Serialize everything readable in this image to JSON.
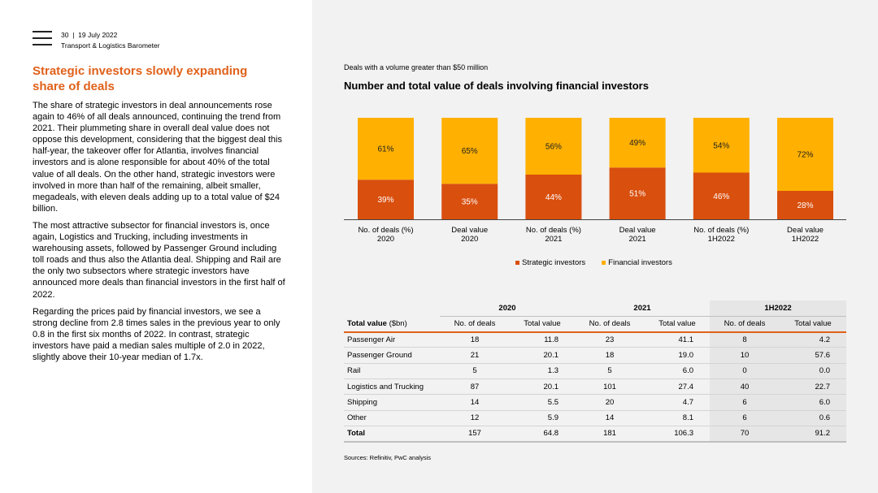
{
  "header": {
    "page_number": "30",
    "separator": "|",
    "date": "19 July 2022",
    "report_name": "Transport & Logistics Barometer"
  },
  "section": {
    "title": "Strategic investors slowly expanding share of deals",
    "paragraphs": [
      "The share of strategic investors in deal announcements rose again to 46% of all deals announced, continuing the trend from 2021. Their plummeting share in overall deal value does not oppose this development, considering that the biggest deal this half-year, the takeover offer for Atlantia, involves financial investors and is alone responsible for about 40% of the total value of all deals. On the other hand, strategic investors were involved in more than half of the remaining, albeit smaller, megadeals, with eleven deals adding up to a total value of $24 billion.",
      "The most attractive subsector for financial investors is, once again, Logistics and Trucking, including investments in warehousing assets, followed by Passenger Ground including toll roads and thus also the Atlantia deal. Shipping and Rail are the only two subsectors where strategic investors have announced more deals than financial investors in the first half of 2022.",
      "Regarding the prices paid by financial investors, we see a strong decline from 2.8 times sales in the previous year to only 0.8 in the first six months of 2022. In contrast, strategic investors have paid a median sales multiple of 2.0 in 2022, slightly above their 10-year median of 1.7x."
    ]
  },
  "chart_data": {
    "type": "bar",
    "stacked": true,
    "subtitle": "Deals with a volume greater than $50 million",
    "title": "Number and total value of deals involving financial investors",
    "categories": [
      [
        "No. of deals (%)",
        "2020"
      ],
      [
        "Deal value",
        "2020"
      ],
      [
        "No. of deals (%)",
        "2021"
      ],
      [
        "Deal value",
        "2021"
      ],
      [
        "No. of deals (%)",
        "1H2022"
      ],
      [
        "Deal value",
        "1H2022"
      ]
    ],
    "series": [
      {
        "name": "Strategic investors",
        "color": "#d94f0e",
        "values": [
          39,
          35,
          44,
          51,
          46,
          28
        ]
      },
      {
        "name": "Financial investors",
        "color": "#ffb000",
        "values": [
          61,
          65,
          56,
          49,
          54,
          72
        ]
      }
    ],
    "ylim": [
      0,
      100
    ],
    "value_suffix": "%",
    "legend": "bottom"
  },
  "table": {
    "groups": [
      "2020",
      "2021",
      "1H2022"
    ],
    "row_header": "Total value",
    "row_header_unit": "($bn)",
    "columns": [
      "No. of deals",
      "Total value",
      "No. of deals",
      "Total value",
      "No. of deals",
      "Total value"
    ],
    "rows": [
      {
        "label": "Passenger Air",
        "values": [
          "18",
          "11.8",
          "23",
          "41.1",
          "8",
          "4.2"
        ]
      },
      {
        "label": "Passenger Ground",
        "values": [
          "21",
          "20.1",
          "18",
          "19.0",
          "10",
          "57.6"
        ]
      },
      {
        "label": "Rail",
        "values": [
          "5",
          "1.3",
          "5",
          "6.0",
          "0",
          "0.0"
        ]
      },
      {
        "label": "Logistics and Trucking",
        "values": [
          "87",
          "20.1",
          "101",
          "27.4",
          "40",
          "22.7"
        ]
      },
      {
        "label": "Shipping",
        "values": [
          "14",
          "5.5",
          "20",
          "4.7",
          "6",
          "6.0"
        ]
      },
      {
        "label": "Other",
        "values": [
          "12",
          "5.9",
          "14",
          "8.1",
          "6",
          "0.6"
        ]
      }
    ],
    "total": {
      "label": "Total",
      "values": [
        "157",
        "64.8",
        "181",
        "106.3",
        "70",
        "91.2"
      ]
    }
  },
  "sources": "Sources: Refinitiv, PwC analysis"
}
